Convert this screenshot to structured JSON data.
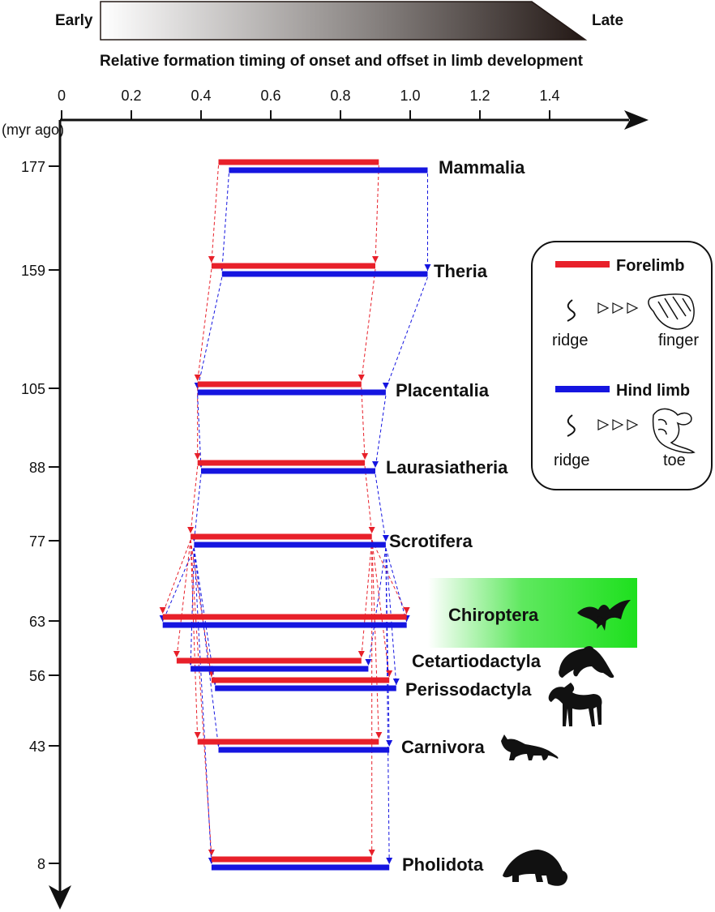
{
  "gradient_bar": {
    "early_label": "Early",
    "late_label": "Late"
  },
  "colors": {
    "forelimb": "#e8202a",
    "hindlimb": "#1515e0",
    "highlight": "#22e022",
    "axis": "#111111"
  },
  "chart_data": {
    "type": "bar",
    "title": "Relative formation timing of onset and offset in limb development",
    "x_ticks": [
      "0",
      "0.2",
      "0.4",
      "0.6",
      "0.8",
      "1.0",
      "1.2",
      "1.4"
    ],
    "x_range": [
      0,
      1.6
    ],
    "y_unit": "(myr ago)",
    "y_range": [
      0,
      177
    ],
    "clades": [
      {
        "name": "Mammalia",
        "time": 177,
        "forelimb": [
          0.45,
          0.91
        ],
        "hindlimb": [
          0.48,
          1.05
        ]
      },
      {
        "name": "Theria",
        "time": 159,
        "forelimb": [
          0.43,
          0.9
        ],
        "hindlimb": [
          0.46,
          1.05
        ]
      },
      {
        "name": "Placentalia",
        "time": 105,
        "forelimb": [
          0.39,
          0.86
        ],
        "hindlimb": [
          0.39,
          0.93
        ]
      },
      {
        "name": "Laurasiatheria",
        "time": 88,
        "forelimb": [
          0.39,
          0.87
        ],
        "hindlimb": [
          0.4,
          0.9
        ]
      },
      {
        "name": "Scrotifera",
        "time": 77,
        "forelimb": [
          0.37,
          0.89
        ],
        "hindlimb": [
          0.38,
          0.93
        ]
      },
      {
        "name": "Chiroptera",
        "time": 63,
        "forelimb": [
          0.29,
          0.99
        ],
        "hindlimb": [
          0.29,
          0.99
        ],
        "highlight": true,
        "icon": "bat-icon"
      },
      {
        "name": "Cetartiodactyla",
        "time": 56,
        "forelimb": [
          0.33,
          0.86
        ],
        "hindlimb": [
          0.37,
          0.88
        ],
        "icon": "dolphin-icon"
      },
      {
        "name": "Perissodactyla",
        "time": 56,
        "forelimb": [
          0.43,
          0.94
        ],
        "hindlimb": [
          0.44,
          0.96
        ],
        "icon": "horse-icon"
      },
      {
        "name": "Carnivora",
        "time": 43,
        "forelimb": [
          0.39,
          0.91
        ],
        "hindlimb": [
          0.45,
          0.94
        ],
        "icon": "cat-icon"
      },
      {
        "name": "Pholidota",
        "time": 8,
        "forelimb": [
          0.43,
          0.89
        ],
        "hindlimb": [
          0.43,
          0.94
        ],
        "icon": "pangolin-icon"
      }
    ],
    "y_tick_labels": [
      "177",
      "159",
      "105",
      "88",
      "77",
      "63",
      "56",
      "43",
      "8"
    ]
  },
  "legend": {
    "forelimb_label": "Forelimb",
    "hindlimb_label": "Hind limb",
    "ridge_label": "ridge",
    "finger_label": "finger",
    "toe_label": "toe"
  }
}
